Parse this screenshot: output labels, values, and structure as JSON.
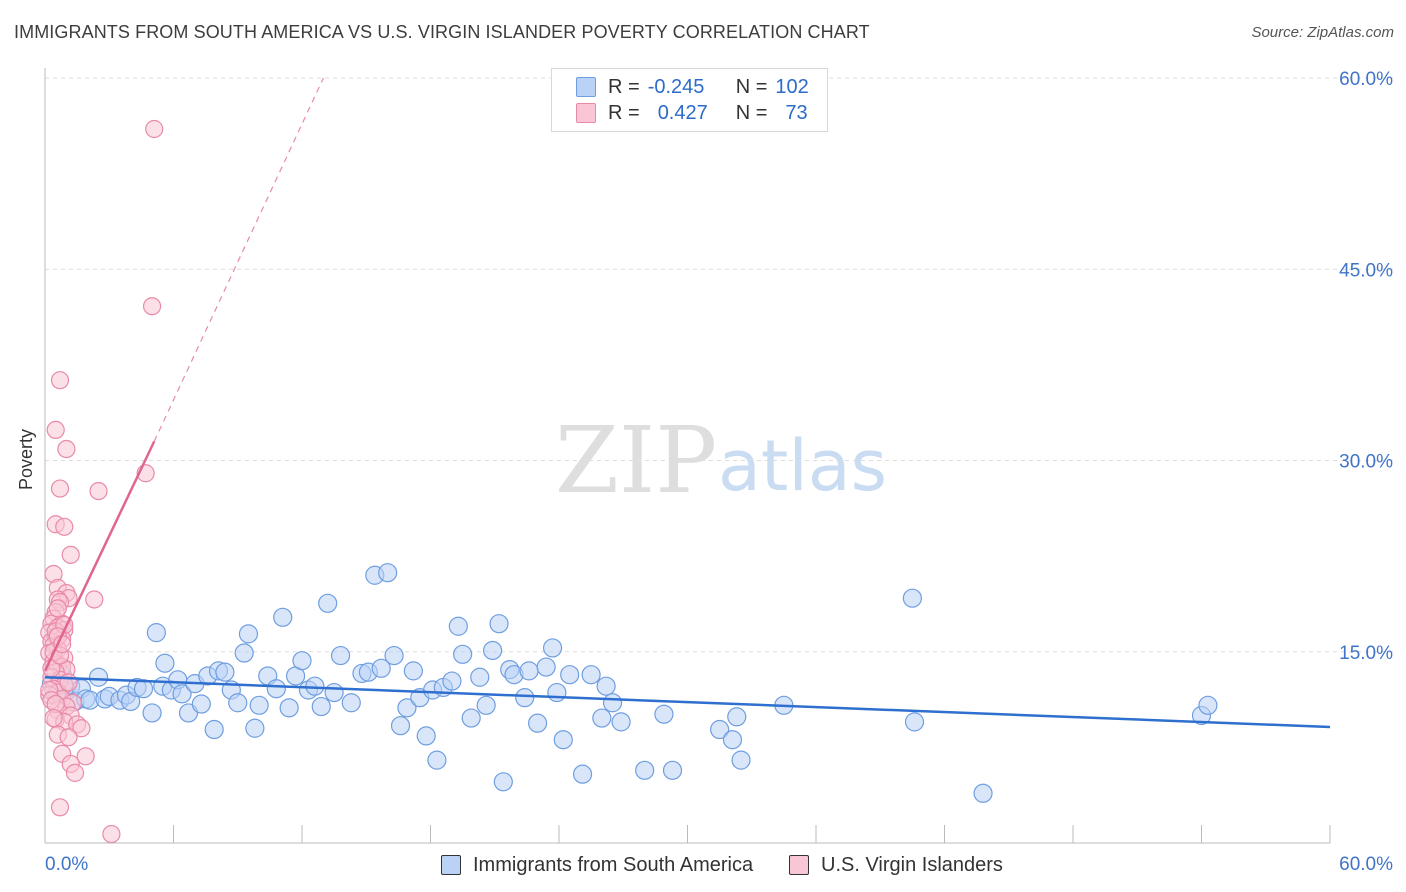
{
  "title": "IMMIGRANTS FROM SOUTH AMERICA VS U.S. VIRGIN ISLANDER POVERTY CORRELATION CHART",
  "source": "Source: ZipAtlas.com",
  "watermark": {
    "zip": "ZIP",
    "atlas": "atlas"
  },
  "legend": {
    "series1": {
      "r_label": "R =",
      "r_value": "-0.245",
      "n_label": "N =",
      "n_value": "102"
    },
    "series2": {
      "r_label": "R =",
      "r_value": "0.427",
      "n_label": "N =",
      "n_value": "73"
    }
  },
  "bottom_legend": {
    "series1": "Immigrants from South America",
    "series2": "U.S. Virgin Islanders"
  },
  "colors": {
    "blue_fill": "#b9d2f5",
    "blue_stroke": "#6f9ee0",
    "blue_line": "#2e6fcf",
    "pink_fill": "#f9c6d6",
    "pink_stroke": "#e88aa8",
    "pink_line": "#e0658f",
    "axis_text": "#3f74c9"
  },
  "chart_data": {
    "type": "scatter",
    "title": "IMMIGRANTS FROM SOUTH AMERICA VS U.S. VIRGIN ISLANDER POVERTY CORRELATION CHART",
    "xlabel": "",
    "ylabel": "Poverty",
    "xlim": [
      0,
      60
    ],
    "ylim": [
      0,
      60
    ],
    "x_tick_labels": [
      "0.0%",
      "60.0%"
    ],
    "y_tick_values": [
      15,
      30,
      45,
      60
    ],
    "y_tick_labels": [
      "15.0%",
      "30.0%",
      "45.0%",
      "60.0%"
    ],
    "grid": true,
    "series": [
      {
        "name": "Immigrants from South America",
        "r": -0.245,
        "n": 102,
        "trend": {
          "x": [
            0,
            60
          ],
          "y": [
            13.0,
            9.1
          ]
        },
        "points": [
          [
            0.3,
            12.5
          ],
          [
            0.5,
            11.6
          ],
          [
            0.8,
            13.2
          ],
          [
            1.0,
            11.9
          ],
          [
            1.2,
            12.3
          ],
          [
            1.4,
            11.1
          ],
          [
            1.7,
            12.1
          ],
          [
            1.9,
            11.3
          ],
          [
            2.1,
            11.2
          ],
          [
            2.5,
            13.0
          ],
          [
            2.8,
            11.3
          ],
          [
            3.0,
            11.5
          ],
          [
            3.5,
            11.2
          ],
          [
            3.8,
            11.6
          ],
          [
            4.0,
            11.1
          ],
          [
            4.3,
            12.2
          ],
          [
            4.6,
            12.1
          ],
          [
            5.0,
            10.2
          ],
          [
            5.2,
            16.5
          ],
          [
            5.5,
            12.3
          ],
          [
            5.6,
            14.1
          ],
          [
            5.9,
            12.0
          ],
          [
            6.2,
            12.8
          ],
          [
            6.4,
            11.7
          ],
          [
            6.7,
            10.2
          ],
          [
            7.0,
            12.5
          ],
          [
            7.3,
            10.9
          ],
          [
            7.6,
            13.1
          ],
          [
            7.9,
            8.9
          ],
          [
            8.1,
            13.5
          ],
          [
            8.4,
            13.4
          ],
          [
            8.7,
            12.0
          ],
          [
            9.0,
            11.0
          ],
          [
            9.3,
            14.9
          ],
          [
            9.5,
            16.4
          ],
          [
            9.8,
            9.0
          ],
          [
            10.0,
            10.8
          ],
          [
            10.4,
            13.1
          ],
          [
            10.8,
            12.1
          ],
          [
            11.1,
            17.7
          ],
          [
            11.4,
            10.6
          ],
          [
            11.7,
            13.1
          ],
          [
            12.0,
            14.3
          ],
          [
            12.3,
            12.0
          ],
          [
            12.6,
            12.3
          ],
          [
            12.9,
            10.7
          ],
          [
            13.2,
            18.8
          ],
          [
            13.5,
            11.8
          ],
          [
            13.8,
            14.7
          ],
          [
            14.3,
            11.0
          ],
          [
            14.8,
            13.3
          ],
          [
            15.1,
            13.4
          ],
          [
            15.4,
            21.0
          ],
          [
            15.7,
            13.7
          ],
          [
            16.0,
            21.2
          ],
          [
            16.3,
            14.7
          ],
          [
            16.6,
            9.2
          ],
          [
            16.9,
            10.6
          ],
          [
            17.2,
            13.5
          ],
          [
            17.5,
            11.4
          ],
          [
            17.8,
            8.4
          ],
          [
            18.1,
            12.0
          ],
          [
            18.3,
            6.5
          ],
          [
            18.6,
            12.2
          ],
          [
            19.0,
            12.7
          ],
          [
            19.3,
            17.0
          ],
          [
            19.5,
            14.8
          ],
          [
            19.9,
            9.8
          ],
          [
            20.3,
            13.0
          ],
          [
            20.6,
            10.8
          ],
          [
            20.9,
            15.1
          ],
          [
            21.2,
            17.2
          ],
          [
            21.4,
            4.8
          ],
          [
            21.7,
            13.6
          ],
          [
            21.9,
            13.2
          ],
          [
            22.4,
            11.4
          ],
          [
            22.6,
            13.5
          ],
          [
            23.0,
            9.4
          ],
          [
            23.4,
            13.8
          ],
          [
            23.7,
            15.3
          ],
          [
            23.9,
            11.8
          ],
          [
            24.2,
            8.1
          ],
          [
            24.5,
            13.2
          ],
          [
            25.1,
            5.4
          ],
          [
            25.5,
            13.2
          ],
          [
            26.0,
            9.8
          ],
          [
            26.2,
            12.3
          ],
          [
            26.5,
            11.0
          ],
          [
            26.9,
            9.5
          ],
          [
            28.0,
            5.7
          ],
          [
            28.9,
            10.1
          ],
          [
            29.3,
            5.7
          ],
          [
            31.5,
            8.9
          ],
          [
            32.1,
            8.1
          ],
          [
            32.3,
            9.9
          ],
          [
            32.5,
            6.5
          ],
          [
            34.5,
            10.8
          ],
          [
            40.5,
            19.2
          ],
          [
            40.6,
            9.5
          ],
          [
            43.8,
            3.9
          ],
          [
            54.0,
            10.0
          ],
          [
            54.3,
            10.8
          ]
        ]
      },
      {
        "name": "U.S. Virgin Islanders",
        "r": 0.427,
        "n": 73,
        "trend": {
          "x": [
            0,
            5.1
          ],
          "y": [
            13.5,
            31.5
          ]
        },
        "trend_dashed": {
          "x": [
            5.1,
            13.0
          ],
          "y": [
            31.5,
            60.0
          ]
        },
        "points": [
          [
            5.1,
            56.0
          ],
          [
            5.0,
            42.1
          ],
          [
            0.7,
            36.3
          ],
          [
            0.5,
            32.4
          ],
          [
            1.0,
            30.9
          ],
          [
            4.7,
            29.0
          ],
          [
            2.5,
            27.6
          ],
          [
            0.7,
            27.8
          ],
          [
            0.5,
            25.0
          ],
          [
            0.9,
            24.8
          ],
          [
            1.2,
            22.6
          ],
          [
            0.4,
            21.1
          ],
          [
            0.6,
            20.0
          ],
          [
            1.0,
            19.6
          ],
          [
            1.1,
            19.2
          ],
          [
            0.6,
            19.1
          ],
          [
            2.3,
            19.1
          ],
          [
            0.7,
            18.9
          ],
          [
            0.5,
            18.1
          ],
          [
            0.4,
            17.6
          ],
          [
            0.3,
            17.2
          ],
          [
            0.8,
            17.2
          ],
          [
            0.6,
            16.9
          ],
          [
            0.9,
            16.7
          ],
          [
            0.2,
            16.5
          ],
          [
            0.5,
            16.2
          ],
          [
            0.8,
            16.0
          ],
          [
            0.3,
            15.8
          ],
          [
            0.4,
            15.5
          ],
          [
            0.6,
            15.2
          ],
          [
            0.2,
            14.9
          ],
          [
            0.9,
            14.5
          ],
          [
            0.4,
            14.2
          ],
          [
            0.6,
            14.0
          ],
          [
            0.8,
            13.8
          ],
          [
            1.0,
            13.6
          ],
          [
            0.5,
            13.4
          ],
          [
            0.3,
            13.0
          ],
          [
            0.7,
            12.8
          ],
          [
            0.9,
            12.4
          ],
          [
            0.4,
            12.1
          ],
          [
            0.6,
            11.8
          ],
          [
            0.2,
            11.6
          ],
          [
            0.8,
            11.3
          ],
          [
            1.3,
            11.0
          ],
          [
            1.0,
            10.7
          ],
          [
            0.6,
            10.4
          ],
          [
            1.2,
            10.0
          ],
          [
            0.5,
            9.7
          ],
          [
            0.9,
            9.5
          ],
          [
            1.5,
            9.3
          ],
          [
            1.7,
            9.0
          ],
          [
            0.6,
            8.5
          ],
          [
            1.1,
            8.3
          ],
          [
            0.8,
            7.0
          ],
          [
            1.9,
            6.8
          ],
          [
            1.2,
            6.2
          ],
          [
            1.4,
            5.5
          ],
          [
            0.7,
            2.8
          ],
          [
            3.1,
            0.7
          ],
          [
            0.3,
            13.7
          ],
          [
            0.5,
            16.6
          ],
          [
            0.4,
            15.0
          ],
          [
            0.2,
            12.0
          ],
          [
            0.6,
            18.4
          ],
          [
            0.3,
            11.2
          ],
          [
            0.7,
            14.7
          ],
          [
            0.9,
            17.1
          ],
          [
            0.5,
            10.9
          ],
          [
            1.1,
            12.6
          ],
          [
            0.4,
            9.8
          ],
          [
            0.6,
            16.2
          ],
          [
            0.8,
            15.6
          ]
        ]
      }
    ]
  }
}
